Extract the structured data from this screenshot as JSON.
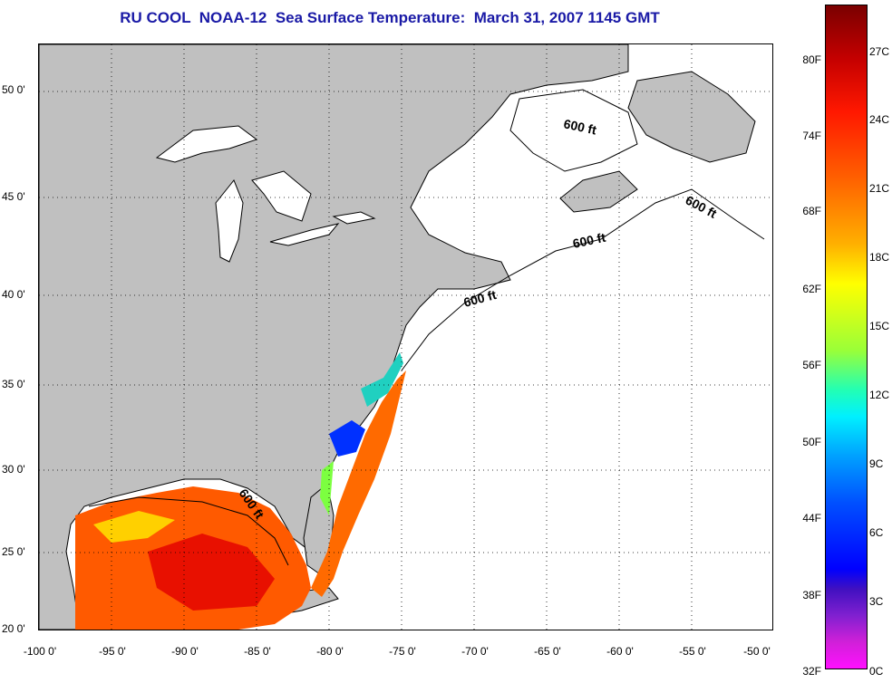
{
  "title": "RU COOL  NOAA-12  Sea Surface Temperature:  March 31, 2007 1145 GMT",
  "lat_labels": [
    "50 0'",
    "45 0'",
    "40 0'",
    "35 0'",
    "30 0'",
    "25 0'",
    "20 0'"
  ],
  "lon_labels": [
    "-100 0'",
    "-95 0'",
    "-90 0'",
    "-85 0'",
    "-80 0'",
    "-75 0'",
    "-70 0'",
    "-65 0'",
    "-60 0'",
    "-55 0'",
    "-50 0'"
  ],
  "isobath_labels": [
    "600 ft",
    "600 ft",
    "600 ft",
    "600 ft",
    "600 ft"
  ],
  "colorbar": {
    "fahrenheit": [
      "80F",
      "74F",
      "68F",
      "62F",
      "56F",
      "50F",
      "44F",
      "38F",
      "32F"
    ],
    "celsius": [
      "27C",
      "24C",
      "21C",
      "18C",
      "15C",
      "12C",
      "9C",
      "6C",
      "3C",
      "0C"
    ]
  },
  "colors": {
    "land": "#c0c0c0",
    "ocean": "#ffffff",
    "title": "#1a1aa6",
    "warm_sst": "#ff5a00",
    "cool_sst": "#0030ff"
  }
}
